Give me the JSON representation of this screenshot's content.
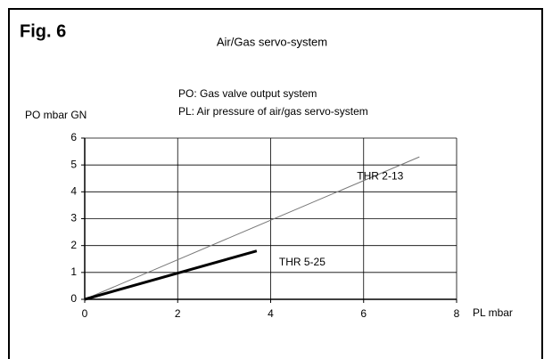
{
  "chart_data": {
    "type": "line",
    "figure_label": "Fig. 6",
    "title": "Air/Gas servo-system",
    "annotations": [
      "PO: Gas valve output system",
      "PL: Air pressure of air/gas servo-system"
    ],
    "x_label": "PL mbar",
    "y_label": "PO mbar GN",
    "series": [
      {
        "name": "THR 2-13",
        "color": "#777777",
        "width": 1,
        "x": [
          0,
          7.2
        ],
        "values": [
          0,
          5.3
        ]
      },
      {
        "name": "THR 5-25",
        "color": "#000000",
        "width": 3,
        "x": [
          0,
          3.7
        ],
        "values": [
          0,
          1.8
        ]
      }
    ],
    "xlim": [
      0,
      8
    ],
    "xticks": [
      0,
      2,
      4,
      6,
      8
    ],
    "ylim": [
      0,
      6
    ],
    "yticks": [
      0,
      1,
      2,
      3,
      4,
      5,
      6
    ],
    "grid": true
  }
}
